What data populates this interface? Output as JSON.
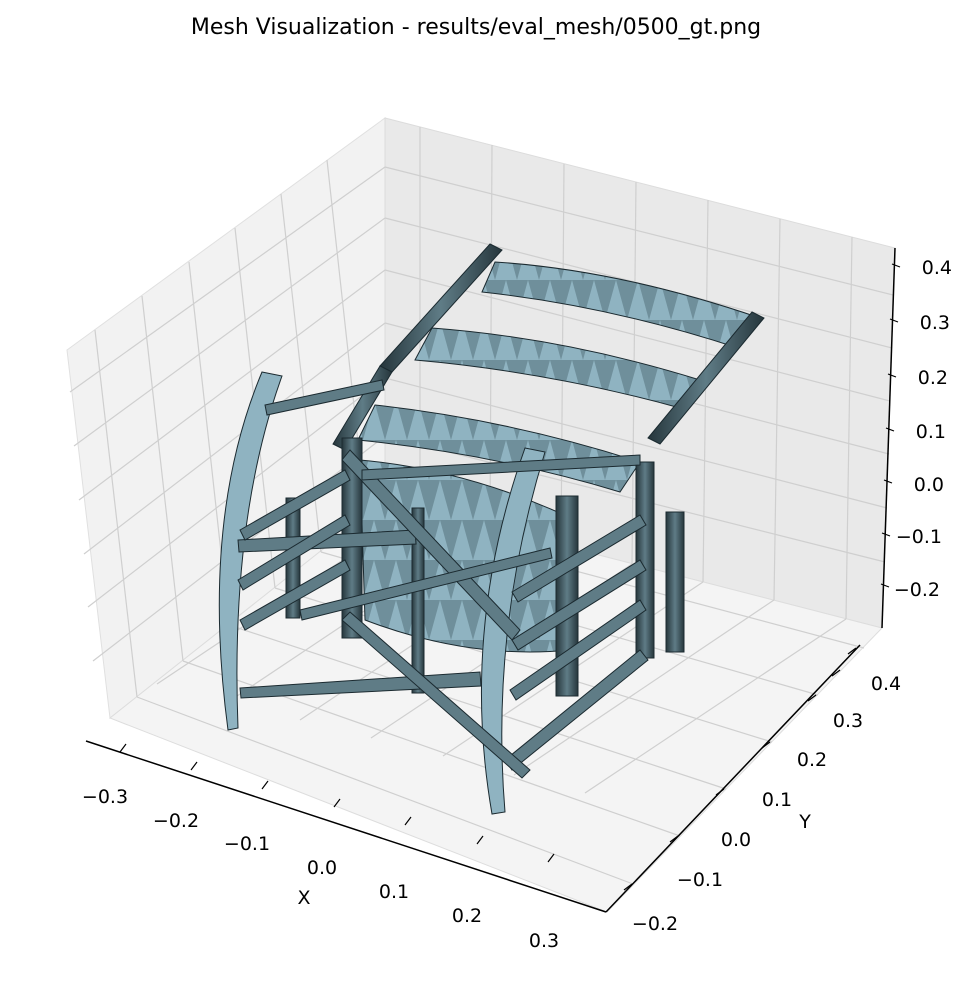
{
  "figure": {
    "title": "Mesh Visualization - results/eval_mesh/0500_gt.png"
  },
  "chart_data": {
    "type": "3d-mesh",
    "title": "Mesh Visualization - results/eval_mesh/0500_gt.png",
    "xlabel": "X",
    "ylabel": "Y",
    "zlabel": "",
    "x_ticks": [
      "−0.3",
      "−0.2",
      "−0.1",
      "0.0",
      "0.1",
      "0.2",
      "0.3"
    ],
    "y_ticks": [
      "−0.2",
      "−0.1",
      "0.0",
      "0.1",
      "0.2",
      "0.3",
      "0.4"
    ],
    "z_ticks": [
      "−0.2",
      "−0.1",
      "0.0",
      "0.1",
      "0.2",
      "0.3",
      "0.4"
    ],
    "xlim": [
      -0.35,
      0.35
    ],
    "ylim": [
      -0.25,
      0.45
    ],
    "zlim": [
      -0.27,
      0.42
    ],
    "grid": true,
    "mesh_face_color": "#8fb3c1",
    "mesh_edge_color": "#1b2a30",
    "pane_color": "#f2f2f2"
  }
}
